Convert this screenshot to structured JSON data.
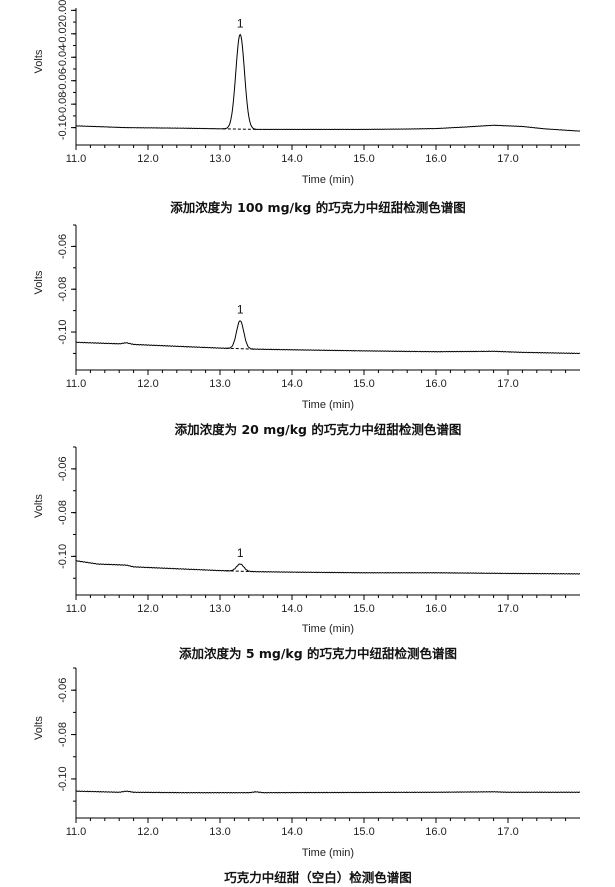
{
  "chart_data": [
    {
      "type": "line",
      "title": "",
      "caption": "添加浓度为 100 mg/kg 的巧克力中纽甜检测色谱图",
      "xlabel": "Time (min)",
      "ylabel": "Volts",
      "xlim": [
        11.0,
        18.0
      ],
      "ylim": [
        -0.108,
        0.002
      ],
      "x_ticks": [
        "11.0",
        "12.0",
        "13.0",
        "14.0",
        "15.0",
        "16.0",
        "17.0"
      ],
      "y_ticks": [
        "-0.10",
        "-0.08",
        "-0.06",
        "-0.04",
        "-0.02",
        "0.00"
      ],
      "grid": false,
      "baseline": [
        [
          11.0,
          -0.0985
        ],
        [
          11.7,
          -0.1
        ],
        [
          12.5,
          -0.1005
        ],
        [
          13.0,
          -0.101
        ],
        [
          13.5,
          -0.1015
        ],
        [
          14.0,
          -0.1015
        ],
        [
          15.0,
          -0.1015
        ],
        [
          15.6,
          -0.1012
        ],
        [
          16.0,
          -0.1008
        ],
        [
          16.4,
          -0.0995
        ],
        [
          16.8,
          -0.098
        ],
        [
          17.2,
          -0.099
        ],
        [
          17.5,
          -0.101
        ],
        [
          18.0,
          -0.103
        ]
      ],
      "peaks": [
        {
          "label": "1",
          "rt": 13.28,
          "apex": -0.0205,
          "width": 0.06
        }
      ]
    },
    {
      "type": "line",
      "title": "",
      "caption": "添加浓度为 20 mg/kg 的巧克力中纽甜检测色谱图",
      "xlabel": "Time (min)",
      "ylabel": "Volts",
      "xlim": [
        11.0,
        18.0
      ],
      "ylim": [
        -0.114,
        -0.05
      ],
      "x_ticks": [
        "11.0",
        "12.0",
        "13.0",
        "14.0",
        "15.0",
        "16.0",
        "17.0"
      ],
      "y_ticks": [
        "-0.10",
        "-0.08",
        "-0.06"
      ],
      "grid": false,
      "baseline": [
        [
          11.0,
          -0.1048
        ],
        [
          11.6,
          -0.1055
        ],
        [
          11.7,
          -0.105
        ],
        [
          11.8,
          -0.1058
        ],
        [
          12.5,
          -0.1068
        ],
        [
          13.0,
          -0.1075
        ],
        [
          13.5,
          -0.108
        ],
        [
          14.0,
          -0.1083
        ],
        [
          15.0,
          -0.1088
        ],
        [
          16.0,
          -0.1092
        ],
        [
          16.8,
          -0.109
        ],
        [
          17.2,
          -0.1095
        ],
        [
          18.0,
          -0.11
        ]
      ],
      "peaks": [
        {
          "label": "1",
          "rt": 13.28,
          "apex": -0.0947,
          "width": 0.05
        }
      ]
    },
    {
      "type": "line",
      "title": "",
      "caption": "添加浓度为 5 mg/kg 的巧克力中纽甜检测色谱图",
      "xlabel": "Time (min)",
      "ylabel": "Volts",
      "xlim": [
        11.0,
        18.0
      ],
      "ylim": [
        -0.114,
        -0.05
      ],
      "x_ticks": [
        "11.0",
        "12.0",
        "13.0",
        "14.0",
        "15.0",
        "16.0",
        "17.0"
      ],
      "y_ticks": [
        "-0.10",
        "-0.08",
        "-0.06"
      ],
      "grid": false,
      "baseline": [
        [
          11.0,
          -0.102
        ],
        [
          11.3,
          -0.1035
        ],
        [
          11.7,
          -0.104
        ],
        [
          11.8,
          -0.1048
        ],
        [
          12.5,
          -0.1058
        ],
        [
          13.0,
          -0.1065
        ],
        [
          13.5,
          -0.107
        ],
        [
          14.0,
          -0.1072
        ],
        [
          15.0,
          -0.1075
        ],
        [
          16.0,
          -0.1075
        ],
        [
          17.0,
          -0.1078
        ],
        [
          18.0,
          -0.108
        ]
      ],
      "peaks": [
        {
          "label": "1",
          "rt": 13.28,
          "apex": -0.1035,
          "width": 0.05
        }
      ]
    },
    {
      "type": "line",
      "title": "",
      "caption": "巧克力中纽甜（空白）检测色谱图",
      "xlabel": "Time (min)",
      "ylabel": "Volts",
      "xlim": [
        11.0,
        18.0
      ],
      "ylim": [
        -0.114,
        -0.05
      ],
      "x_ticks": [
        "11.0",
        "12.0",
        "13.0",
        "14.0",
        "15.0",
        "16.0",
        "17.0"
      ],
      "y_ticks": [
        "-0.10",
        "-0.08",
        "-0.06"
      ],
      "grid": false,
      "baseline": [
        [
          11.0,
          -0.1055
        ],
        [
          11.6,
          -0.106
        ],
        [
          11.7,
          -0.1055
        ],
        [
          11.8,
          -0.106
        ],
        [
          12.5,
          -0.1062
        ],
        [
          13.4,
          -0.1062
        ],
        [
          13.5,
          -0.1058
        ],
        [
          13.6,
          -0.1062
        ],
        [
          16.0,
          -0.106
        ],
        [
          16.8,
          -0.1058
        ],
        [
          17.0,
          -0.106
        ],
        [
          18.0,
          -0.106
        ]
      ],
      "peaks": []
    }
  ],
  "style": {
    "line_color": "#000000",
    "axis_color": "#000000"
  }
}
